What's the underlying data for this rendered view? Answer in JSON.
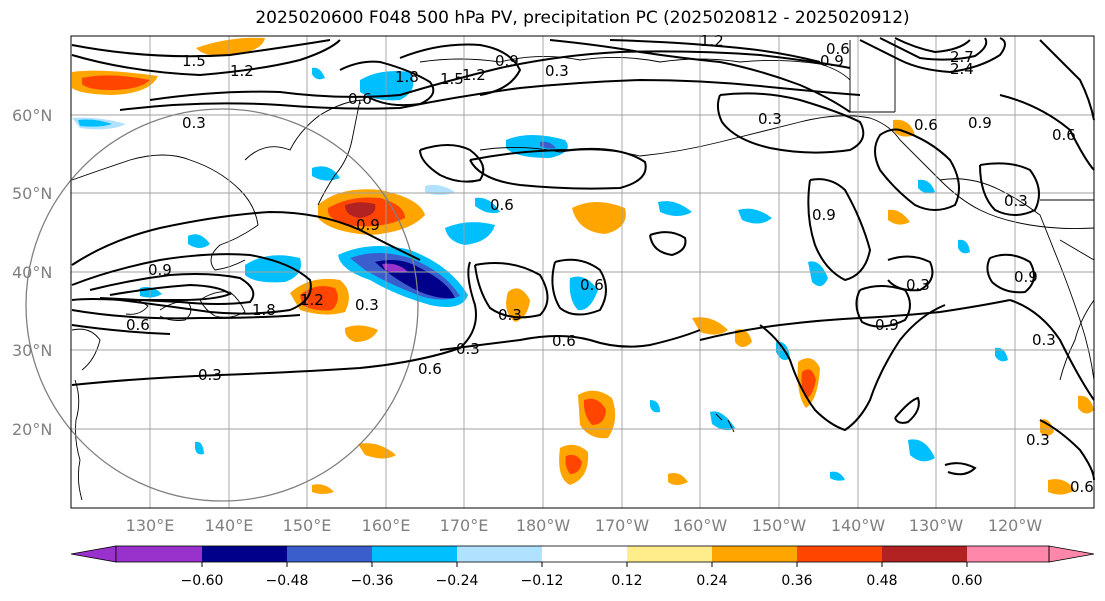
{
  "title": "2025020600 F048 500 hPa PV, precipitation PC (2025020812 - 2025020912)",
  "lat_labels": [
    "60°N",
    "50°N",
    "40°N",
    "30°N",
    "20°N"
  ],
  "lon_labels": [
    "130°E",
    "140°E",
    "150°E",
    "160°E",
    "170°E",
    "180°W",
    "170°W",
    "160°W",
    "150°W",
    "140°W",
    "130°W",
    "120°W"
  ],
  "colorbar": {
    "ticks": [
      "−0.60",
      "−0.48",
      "−0.36",
      "−0.24",
      "−0.12",
      "0.12",
      "0.24",
      "0.36",
      "0.48",
      "0.60"
    ],
    "colors": [
      "#9932cc",
      "#00008b",
      "#3a5fcd",
      "#00bfff",
      "#b0e2ff",
      "#ffffff",
      "#ffec8b",
      "#ffa500",
      "#ff4500",
      "#b22222",
      "#ff88aa"
    ]
  },
  "contour_labels": [
    "1.5",
    "1.2",
    "1.8",
    "1.5",
    "1.2",
    "0.9",
    "0.3",
    "0.6",
    "0.6",
    "0.3",
    "1.2",
    "0.9",
    "2.7",
    "2.4",
    "0.9",
    "0.6",
    "0.3",
    "0.6",
    "0.9",
    "0.6",
    "0.6",
    "0.3",
    "0.9",
    "0.3",
    "0.6",
    "0.3",
    "0.9",
    "0.3",
    "0.6",
    "0.3",
    "0.9",
    "0.3",
    "0.9",
    "0.3",
    "1.2",
    "1.8",
    "0.6",
    "0.3",
    "0.6",
    "0.3",
    "0.6",
    "0.3",
    "0.3",
    "0.6",
    "0.3",
    "0.3",
    "0.6",
    "0.9",
    "0.3"
  ]
}
